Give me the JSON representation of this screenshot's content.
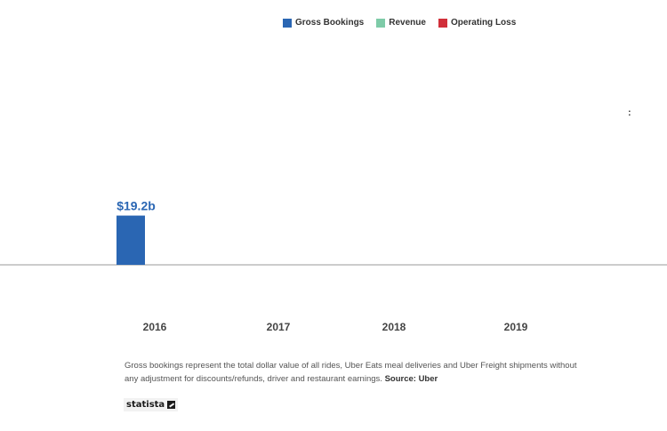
{
  "legend": [
    {
      "label": "Gross Bookings",
      "color": "#2a66b3"
    },
    {
      "label": "Revenue",
      "color": "#7ecba8"
    },
    {
      "label": "Operating Loss",
      "color": "#d12f3a"
    }
  ],
  "menu": {
    "label": ":"
  },
  "chart_data": {
    "type": "bar",
    "categories": [
      "2016",
      "2017",
      "2018",
      "2019"
    ],
    "series": [
      {
        "name": "Gross Bookings",
        "values": [
          19.2,
          null,
          null,
          null
        ],
        "labels": [
          "$19.2b",
          "",
          "",
          ""
        ]
      },
      {
        "name": "Revenue",
        "values": [
          null,
          null,
          null,
          null
        ]
      },
      {
        "name": "Operating Loss",
        "values": [
          null,
          null,
          null,
          null
        ]
      }
    ],
    "title": "",
    "xlabel": "",
    "ylabel": "",
    "ylim": [
      0,
      88
    ],
    "grid": false,
    "legend_position": "top"
  },
  "footnote": {
    "text": "Gross bookings represent the total dollar value of all rides, Uber Eats meal deliveries and Uber Freight shipments without any adjustment for discounts/refunds, driver and restaurant earnings.",
    "source": "Source: Uber"
  },
  "logo": {
    "text": "statista"
  }
}
